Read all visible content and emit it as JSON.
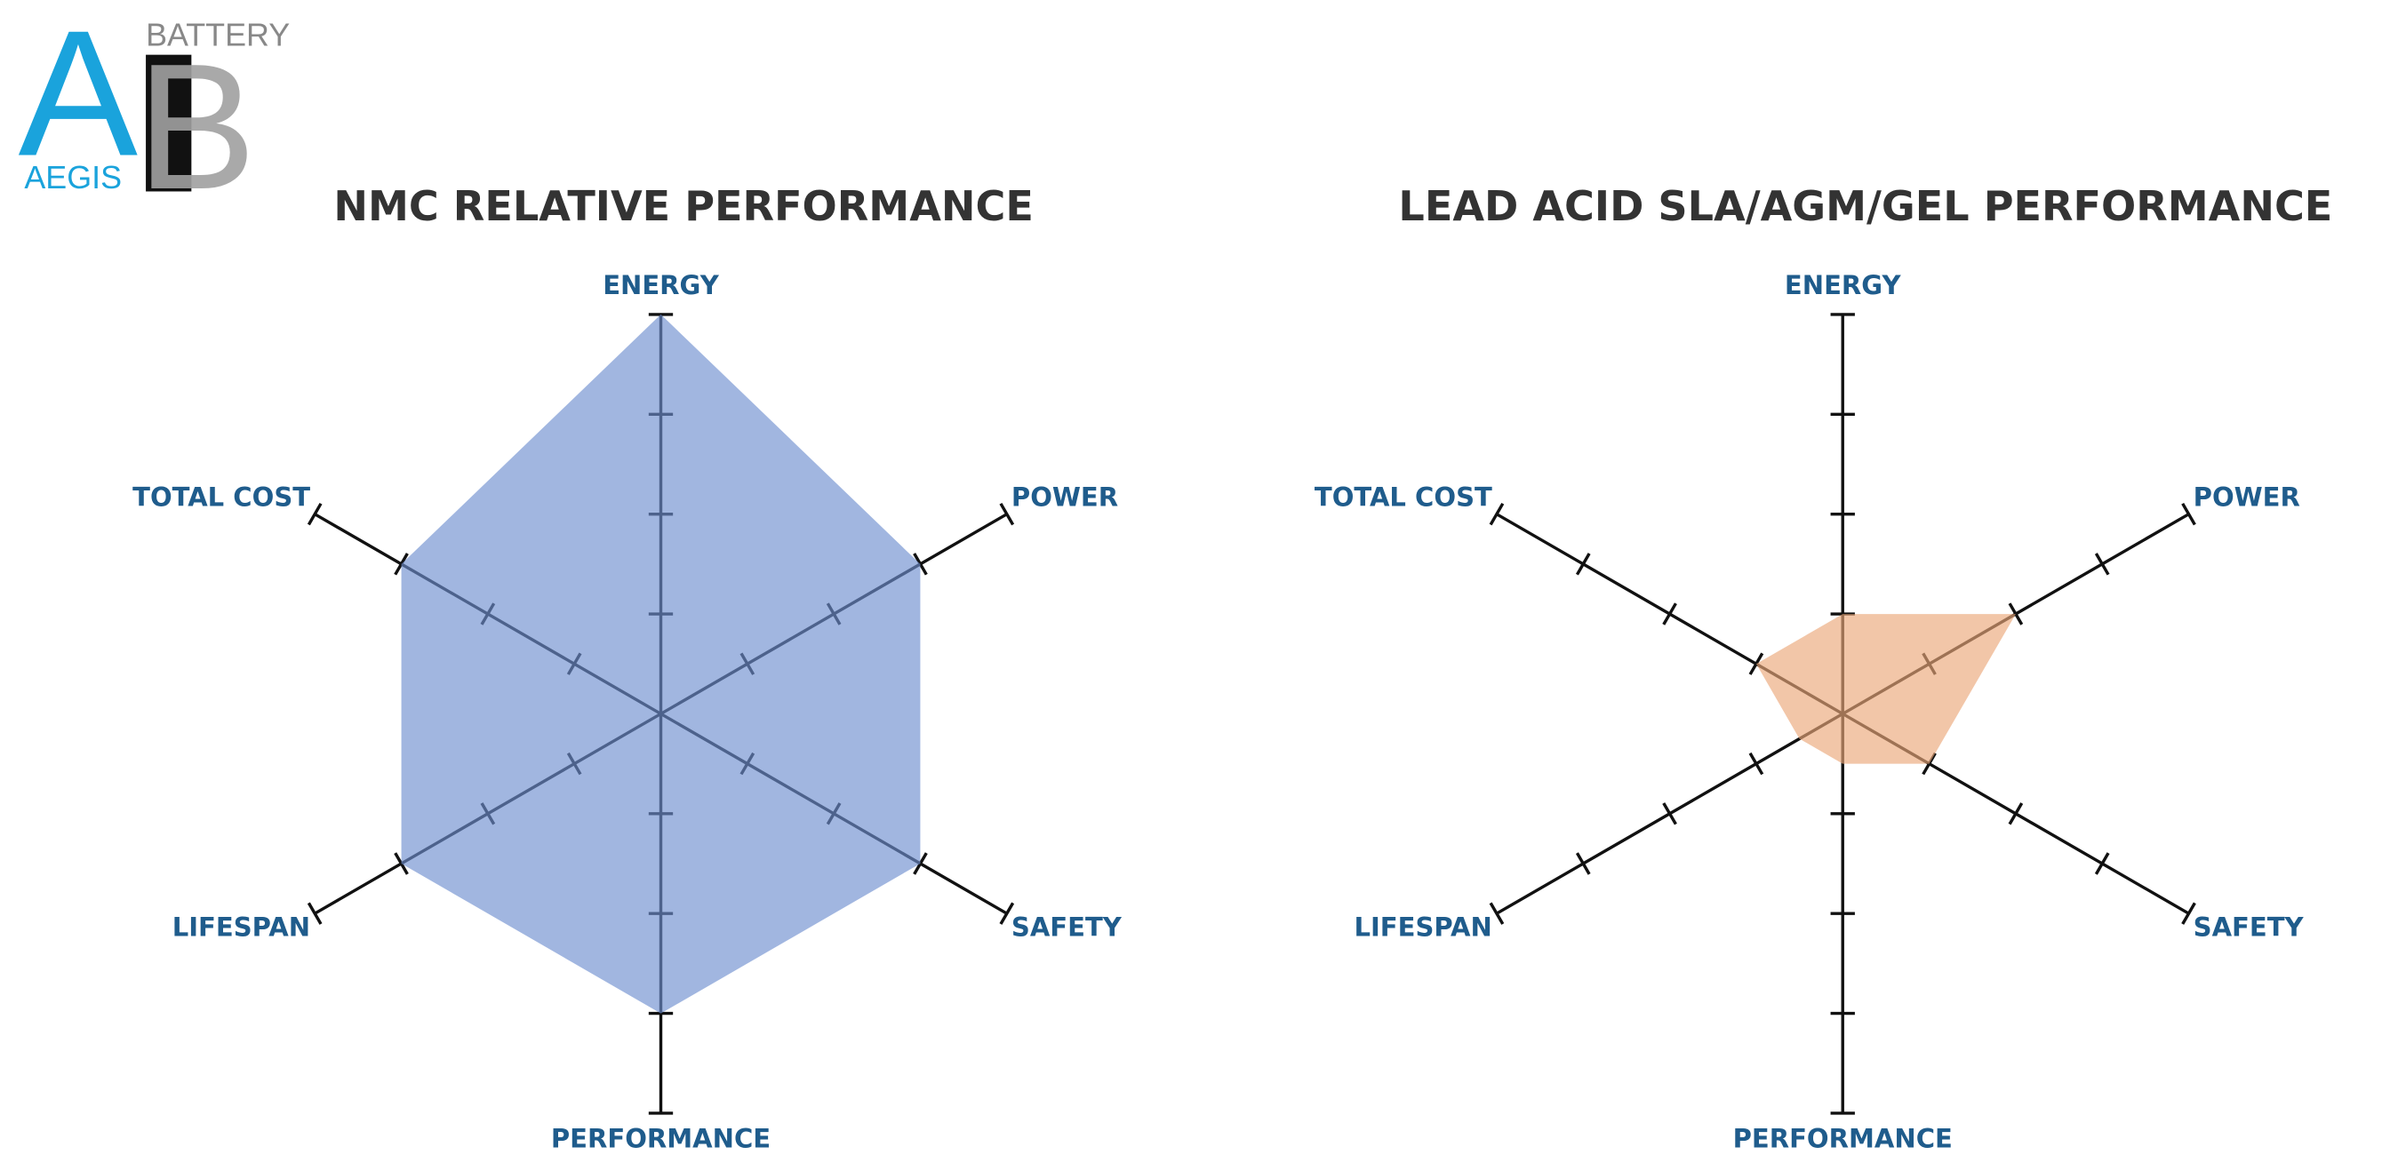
{
  "logo": {
    "letters": [
      "A",
      "B"
    ],
    "top": "BATTERY",
    "bottom": "AEGIS"
  },
  "chart_data": [
    {
      "type": "radar",
      "title": "NMC RELATIVE PERFORMANCE",
      "categories": [
        "ENERGY",
        "POWER",
        "SAFETY",
        "PERFORMANCE",
        "LIFESPAN",
        "TOTAL COST"
      ],
      "series": [
        {
          "color": "#6f8fd0",
          "values": [
            4,
            3,
            3,
            3,
            3,
            3
          ]
        }
      ],
      "rlim": [
        0,
        4
      ],
      "rticks": [
        1,
        2,
        3,
        4
      ]
    },
    {
      "type": "radar",
      "title": "LEAD ACID SLA/AGM/GEL PERFORMANCE",
      "categories": [
        "ENERGY",
        "POWER",
        "SAFETY",
        "PERFORMANCE",
        "LIFESPAN",
        "TOTAL COST"
      ],
      "series": [
        {
          "color": "#eba77a",
          "values": [
            1,
            2,
            1,
            0.5,
            0.5,
            1
          ]
        }
      ],
      "rlim": [
        0,
        4
      ],
      "rticks": [
        1,
        2,
        3,
        4
      ]
    }
  ]
}
